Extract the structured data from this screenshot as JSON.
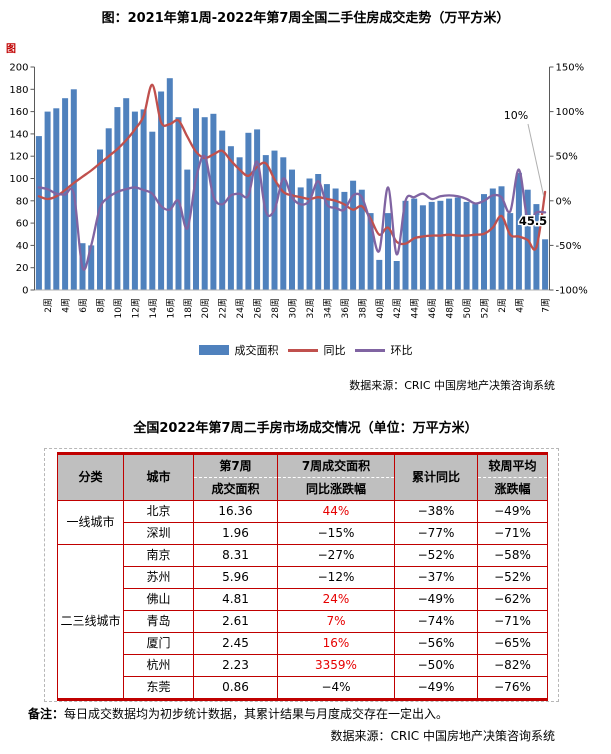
{
  "chart": {
    "title": "图：2021年第1周-2022年第7周全国二手住房成交走势（万平方米）",
    "corner_mark": "图",
    "source": "数据来源：CRIC 中国房地产决策咨询系统",
    "annotations": {
      "yoy_last": "10%",
      "last_bar": "45.5"
    }
  },
  "chart_data": {
    "type": "bar+line",
    "title": "2021年第1周-2022年第7周全国二手住房成交走势（万平方米）",
    "grid": false,
    "legend_position": "bottom",
    "left_axis": {
      "min": 0,
      "max": 200,
      "step": 20
    },
    "right_axis": {
      "min": -100,
      "max": 150,
      "step": 50,
      "suffix": "%"
    },
    "categories": [
      "1周",
      "2周",
      "3周",
      "4周",
      "5周",
      "6周",
      "7周",
      "8周",
      "9周",
      "10周",
      "11周",
      "12周",
      "13周",
      "14周",
      "15周",
      "16周",
      "17周",
      "18周",
      "19周",
      "20周",
      "21周",
      "22周",
      "23周",
      "24周",
      "25周",
      "26周",
      "27周",
      "28周",
      "29周",
      "30周",
      "31周",
      "32周",
      "33周",
      "34周",
      "35周",
      "36周",
      "37周",
      "38周",
      "39周",
      "40周",
      "41周",
      "42周",
      "43周",
      "44周",
      "45周",
      "46周",
      "47周",
      "48周",
      "49周",
      "50周",
      "51周",
      "52周",
      "1周",
      "2周",
      "3周",
      "4周",
      "5周",
      "6周",
      "7周"
    ],
    "x_tick_labels": [
      {
        "i": 1,
        "label": "2周"
      },
      {
        "i": 3,
        "label": "4周"
      },
      {
        "i": 5,
        "label": "6周"
      },
      {
        "i": 7,
        "label": "8周"
      },
      {
        "i": 9,
        "label": "10周"
      },
      {
        "i": 11,
        "label": "12周"
      },
      {
        "i": 13,
        "label": "14周"
      },
      {
        "i": 15,
        "label": "16周"
      },
      {
        "i": 17,
        "label": "18周"
      },
      {
        "i": 19,
        "label": "20周"
      },
      {
        "i": 21,
        "label": "22周"
      },
      {
        "i": 23,
        "label": "24周"
      },
      {
        "i": 25,
        "label": "26周"
      },
      {
        "i": 27,
        "label": "28周"
      },
      {
        "i": 29,
        "label": "30周"
      },
      {
        "i": 31,
        "label": "32周"
      },
      {
        "i": 33,
        "label": "34周"
      },
      {
        "i": 35,
        "label": "36周"
      },
      {
        "i": 37,
        "label": "38周"
      },
      {
        "i": 39,
        "label": "40周"
      },
      {
        "i": 41,
        "label": "42周"
      },
      {
        "i": 43,
        "label": "44周"
      },
      {
        "i": 45,
        "label": "46周"
      },
      {
        "i": 47,
        "label": "48周"
      },
      {
        "i": 49,
        "label": "50周"
      },
      {
        "i": 51,
        "label": "52周"
      },
      {
        "i": 53,
        "label": "2周"
      },
      {
        "i": 55,
        "label": "4周"
      },
      {
        "i": 58,
        "label": "7周"
      }
    ],
    "series": [
      {
        "name": "成交面积",
        "type": "bar",
        "axis": "left",
        "color": "#4F81BD",
        "values": [
          138,
          160,
          163,
          172,
          180,
          42,
          40,
          126,
          145,
          164,
          172,
          160,
          162,
          142,
          178,
          190,
          155,
          108,
          163,
          155,
          158,
          143,
          129,
          119,
          141,
          144,
          121,
          125,
          119,
          108,
          92,
          100,
          104,
          95,
          91,
          88,
          98,
          90,
          69,
          27,
          69,
          26,
          80,
          82,
          76,
          79,
          80,
          82,
          83,
          79,
          77,
          86,
          91,
          93,
          69,
          105,
          90,
          77,
          45.5
        ]
      },
      {
        "name": "同比",
        "type": "line",
        "axis": "right",
        "unit": "%",
        "color": "#C0504D",
        "values": [
          5,
          2,
          5,
          12,
          20,
          27,
          34,
          42,
          50,
          58,
          68,
          80,
          95,
          130,
          88,
          86,
          90,
          72,
          55,
          48,
          52,
          56,
          45,
          35,
          28,
          38,
          42,
          24,
          10,
          6,
          4,
          2,
          4,
          2,
          0,
          -4,
          -10,
          -6,
          -20,
          -38,
          -30,
          -46,
          -48,
          -42,
          -40,
          -39,
          -39,
          -38,
          -39,
          -39,
          -38,
          -37,
          -30,
          -17,
          -38,
          -40,
          -44,
          -52,
          10
        ]
      },
      {
        "name": "环比",
        "type": "line",
        "axis": "right",
        "unit": "%",
        "color": "#8064A2",
        "values": [
          15,
          13,
          8,
          7,
          8,
          -75,
          -50,
          -8,
          4,
          10,
          13,
          15,
          12,
          8,
          -6,
          -10,
          0,
          -31,
          25,
          50,
          5,
          -4,
          6,
          8,
          6,
          44,
          -12,
          -10,
          25,
          4,
          -4,
          0,
          22,
          -4,
          -8,
          -10,
          6,
          4,
          -25,
          -56,
          15,
          -60,
          0,
          4,
          8,
          2,
          5,
          6,
          5,
          2,
          -3,
          0,
          6,
          4,
          -12,
          35,
          -22,
          -13,
          -13
        ]
      }
    ]
  },
  "table": {
    "title": "全国2022年第7周二手房市场成交情况（单位：万平方米）",
    "headers": [
      {
        "l1": "分类",
        "l2": ""
      },
      {
        "l1": "城市",
        "l2": ""
      },
      {
        "l1": "第7周",
        "l2": "成交面积"
      },
      {
        "l1": "7周成交面积",
        "l2": "同比涨跌幅"
      },
      {
        "l1": "累计同比",
        "l2": ""
      },
      {
        "l1": "较周平均",
        "l2": "涨跌幅"
      }
    ],
    "groups": [
      {
        "category": "一线城市",
        "rows": [
          {
            "city": "北京",
            "area": "16.36",
            "yoy": "44%",
            "yoy_red": true,
            "cum": "−38%",
            "wow": "−49%"
          },
          {
            "city": "深圳",
            "area": "1.96",
            "yoy": "−15%",
            "yoy_red": false,
            "cum": "−77%",
            "wow": "−71%"
          }
        ]
      },
      {
        "category": "二三线城市",
        "rows": [
          {
            "city": "南京",
            "area": "8.31",
            "yoy": "−27%",
            "yoy_red": false,
            "cum": "−52%",
            "wow": "−58%"
          },
          {
            "city": "苏州",
            "area": "5.96",
            "yoy": "−12%",
            "yoy_red": false,
            "cum": "−37%",
            "wow": "−52%"
          },
          {
            "city": "佛山",
            "area": "4.81",
            "yoy": "24%",
            "yoy_red": true,
            "cum": "−49%",
            "wow": "−62%"
          },
          {
            "city": "青岛",
            "area": "2.61",
            "yoy": "7%",
            "yoy_red": true,
            "cum": "−74%",
            "wow": "−71%"
          },
          {
            "city": "厦门",
            "area": "2.45",
            "yoy": "16%",
            "yoy_red": true,
            "cum": "−56%",
            "wow": "−65%"
          },
          {
            "city": "杭州",
            "area": "2.23",
            "yoy": "3359%",
            "yoy_red": true,
            "cum": "−50%",
            "wow": "−82%"
          },
          {
            "city": "东莞",
            "area": "0.86",
            "yoy": "−4%",
            "yoy_red": false,
            "cum": "−49%",
            "wow": "−76%"
          }
        ]
      }
    ]
  },
  "footer": {
    "note_label": "备注：",
    "note": "每日成交数据均为初步统计数据，其累计结果与月度成交存在一定出入。",
    "source": "数据来源：CRIC 中国房地产决策咨询系统"
  }
}
